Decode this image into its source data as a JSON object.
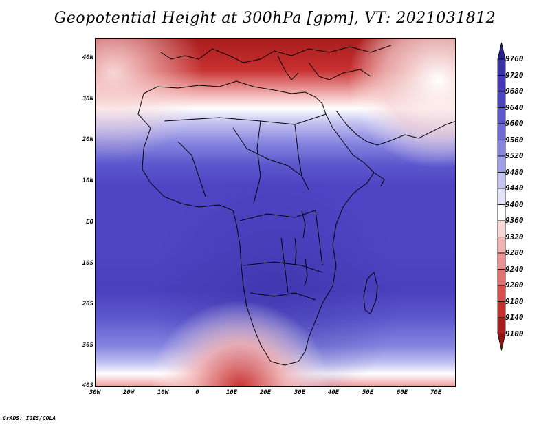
{
  "title": "Geopotential Height at 300hPa [gpm], VT: 2021031812",
  "credit": "GrADS: IGES/COLA",
  "lat_labels": [
    "40N",
    "30N",
    "20N",
    "10N",
    "EQ",
    "10S",
    "20S",
    "30S",
    "40S"
  ],
  "lon_labels": [
    "30W",
    "20W",
    "10W",
    "0",
    "10E",
    "20E",
    "30E",
    "40E",
    "50E",
    "60E",
    "70E"
  ],
  "legend": {
    "levels": [
      "9760",
      "9720",
      "9680",
      "9640",
      "9600",
      "9560",
      "9520",
      "9480",
      "9440",
      "9400",
      "9360",
      "9320",
      "9280",
      "9240",
      "9200",
      "9180",
      "9140",
      "9100"
    ],
    "colors": [
      "#2a1f8f",
      "#3a32a8",
      "#4637b8",
      "#4e45c4",
      "#5d58cd",
      "#6e6bd6",
      "#8584df",
      "#a19fe8",
      "#c4c3f1",
      "#e4e3f8",
      "#ffffff",
      "#f8d6d6",
      "#f2b3b3",
      "#ec9292",
      "#e47070",
      "#db4e4e",
      "#c73030",
      "#a81d1d",
      "#8f1414"
    ]
  },
  "colors": {
    "deep_blue": "#4a40bd",
    "mid_blue": "#5d58cd",
    "light_blue": "#a19fe8",
    "white": "#ffffff",
    "red": "#c73030",
    "dark_red": "#a81d1d"
  }
}
